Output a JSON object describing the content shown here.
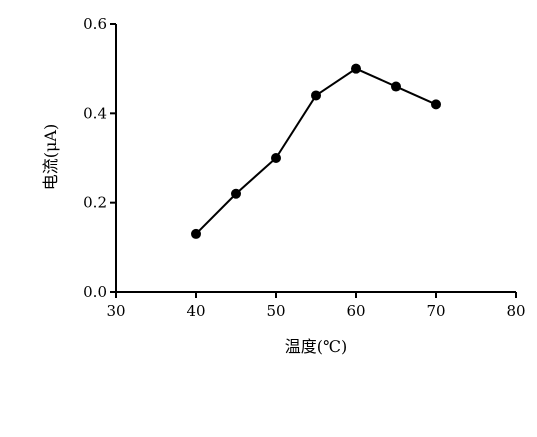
{
  "chart_data": {
    "type": "line",
    "title": "",
    "xlabel": "温度(℃)",
    "ylabel": "电流(μA)",
    "x": [
      40,
      45,
      50,
      55,
      60,
      65,
      70
    ],
    "series": [
      {
        "values": [
          0.13,
          0.22,
          0.3,
          0.44,
          0.5,
          0.46,
          0.42
        ]
      }
    ],
    "xlim": [
      30,
      80
    ],
    "ylim": [
      0.0,
      0.6
    ],
    "xticks": [
      "30",
      "40",
      "50",
      "60",
      "70",
      "80"
    ],
    "yticks": [
      "0.0",
      "0.2",
      "0.4",
      "0.6"
    ],
    "grid": false,
    "legend": "none",
    "colors": {
      "line": "#000000",
      "marker": "#000000",
      "axis": "#000000"
    }
  }
}
